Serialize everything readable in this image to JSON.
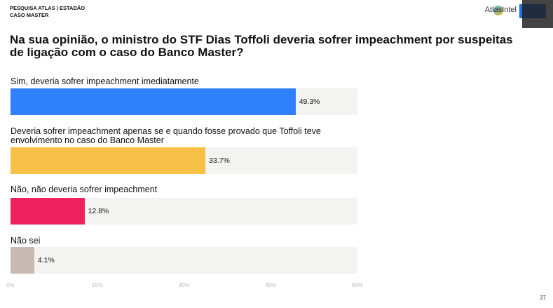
{
  "header": {
    "line1": "PESQUISA ATLAS | ESTADÃO",
    "line2": "CASO MASTER",
    "logo": "AtlasIntel"
  },
  "page_number": "37",
  "chart_data": {
    "type": "bar",
    "orientation": "horizontal",
    "title": "Na sua opinião, o ministro do STF Dias Toffoli deveria sofrer impeachment por suspeitas de ligação com o caso do Banco Master?",
    "categories": [
      "Sim, deveria sofrer impeachment imediatamente",
      "Deveria sofrer impeachment apenas se e quando fosse provado que Toffoli teve envolvimento no caso do Banco Master",
      "Não, não deveria sofrer impeachment",
      "Não sei"
    ],
    "values": [
      49.3,
      33.7,
      12.8,
      4.1
    ],
    "value_labels": [
      "49.3%",
      "33.7%",
      "12.8%",
      "4.1%"
    ],
    "colors": [
      "#2f80fa",
      "#f7c046",
      "#f0215f",
      "#c9bbb3"
    ],
    "xlim": [
      0,
      60
    ],
    "xticks": [
      {
        "value": 0,
        "label": "0%"
      },
      {
        "value": 15,
        "label": "15%"
      },
      {
        "value": 30,
        "label": "30%"
      },
      {
        "value": 45,
        "label": "45%"
      },
      {
        "value": 60,
        "label": "60%"
      }
    ]
  }
}
